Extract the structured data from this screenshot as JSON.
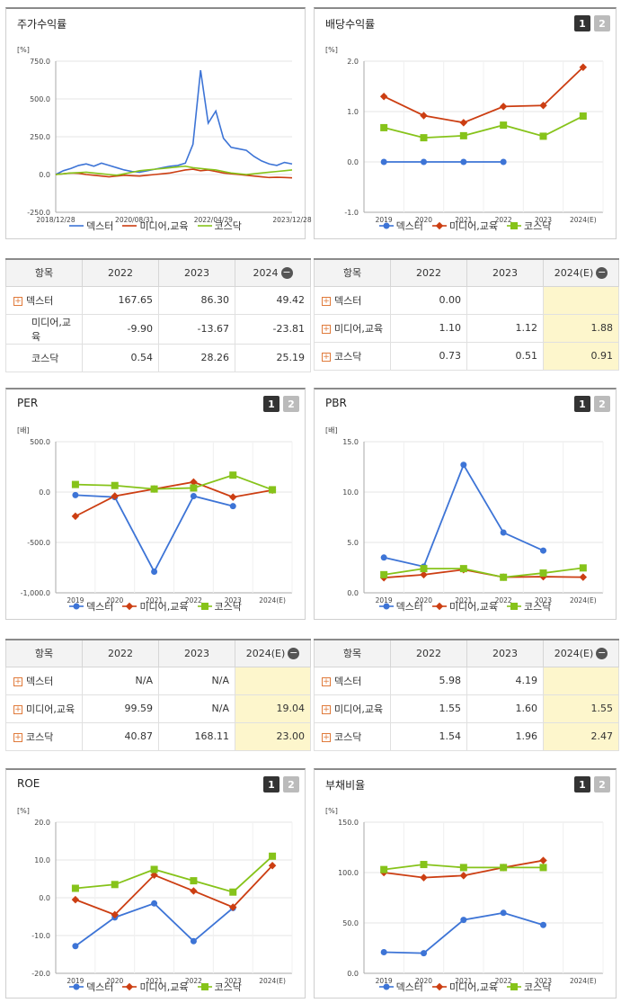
{
  "legend": [
    "덱스터",
    "미디어,교육",
    "코스닥"
  ],
  "colors": [
    "#3d74d6",
    "#cc3e12",
    "#86c31a"
  ],
  "buttons": [
    "1",
    "2"
  ],
  "minus": "−",
  "charts": [
    {
      "key": "stock",
      "title": "주가수익률",
      "unit": "[%]",
      "type": "line",
      "yticks": [
        "750.0",
        "500.0",
        "250.0",
        "0.0",
        "-250.0"
      ],
      "ylim": [
        -250,
        750
      ],
      "xticks": [
        "2018/12/28",
        "2020/08/31",
        "2022/04/29",
        "2023/12/28"
      ],
      "series": [
        {
          "name": "덱스터",
          "values": [
            0,
            25,
            40,
            60,
            70,
            55,
            75,
            60,
            45,
            30,
            20,
            15,
            25,
            35,
            45,
            55,
            60,
            75,
            200,
            690,
            340,
            420,
            240,
            180,
            170,
            160,
            120,
            90,
            70,
            60,
            80,
            70
          ]
        },
        {
          "name": "미디어,교육",
          "values": [
            0,
            5,
            10,
            8,
            0,
            -5,
            -10,
            -15,
            -10,
            -5,
            -8,
            -10,
            -5,
            0,
            5,
            10,
            20,
            30,
            35,
            25,
            30,
            20,
            10,
            5,
            0,
            -5,
            -10,
            -15,
            -20,
            -18,
            -20,
            -22
          ]
        },
        {
          "name": "코스닥",
          "values": [
            0,
            5,
            10,
            12,
            15,
            10,
            5,
            0,
            -5,
            5,
            15,
            25,
            30,
            35,
            40,
            45,
            50,
            55,
            45,
            40,
            35,
            30,
            20,
            10,
            5,
            0,
            5,
            10,
            15,
            20,
            25,
            30
          ]
        }
      ]
    },
    {
      "key": "div",
      "title": "배당수익률",
      "unit": "[%]",
      "type": "line",
      "yticks": [
        "2.0",
        "1.0",
        "0.0",
        "-1.0"
      ],
      "ylim": [
        -1,
        2
      ],
      "xticks": [
        "2019",
        "2020",
        "2021",
        "2022",
        "2023",
        "2024(E)"
      ],
      "series": [
        {
          "name": "덱스터",
          "values": [
            0,
            0,
            0,
            0,
            null,
            null
          ]
        },
        {
          "name": "미디어,교육",
          "values": [
            1.3,
            0.92,
            0.78,
            1.1,
            1.12,
            1.88
          ]
        },
        {
          "name": "코스닥",
          "values": [
            0.68,
            0.48,
            0.52,
            0.73,
            0.51,
            0.91
          ]
        }
      ]
    },
    {
      "key": "per",
      "title": "PER",
      "unit": "[배]",
      "type": "line",
      "yticks": [
        "500.0",
        "0.0",
        "-500.0",
        "-1,000.0"
      ],
      "ylim": [
        -1000,
        500
      ],
      "xticks": [
        "2019",
        "2020",
        "2021",
        "2022",
        "2023",
        "2024(E)"
      ],
      "series": [
        {
          "name": "덱스터",
          "values": [
            -30,
            -50,
            -790,
            -40,
            -140,
            null
          ]
        },
        {
          "name": "미디어,교육",
          "values": [
            -240,
            -40,
            30,
            99.59,
            -50,
            19.04
          ]
        },
        {
          "name": "코스닥",
          "values": [
            75,
            65,
            30,
            40.87,
            168.11,
            23
          ]
        }
      ]
    },
    {
      "key": "pbr",
      "title": "PBR",
      "unit": "[배]",
      "type": "line",
      "yticks": [
        "15.0",
        "10.0",
        "5.0",
        "0.0"
      ],
      "ylim": [
        0,
        15
      ],
      "xticks": [
        "2019",
        "2020",
        "2021",
        "2022",
        "2023",
        "2024(E)"
      ],
      "series": [
        {
          "name": "덱스터",
          "values": [
            3.5,
            2.6,
            12.7,
            5.98,
            4.19,
            null
          ]
        },
        {
          "name": "미디어,교육",
          "values": [
            1.5,
            1.8,
            2.3,
            1.55,
            1.6,
            1.55
          ]
        },
        {
          "name": "코스닥",
          "values": [
            1.8,
            2.4,
            2.4,
            1.54,
            1.96,
            2.47
          ]
        }
      ]
    },
    {
      "key": "roe",
      "title": "ROE",
      "unit": "[%]",
      "type": "line",
      "yticks": [
        "20.0",
        "10.0",
        "0.0",
        "-10.0",
        "-20.0"
      ],
      "ylim": [
        -20,
        20
      ],
      "xticks": [
        "2019",
        "2020",
        "2021",
        "2022",
        "2023",
        "2024(E)"
      ],
      "series": [
        {
          "name": "덱스터",
          "values": [
            -12.8,
            -5.2,
            -1.5,
            -11.5,
            -2.7,
            null
          ]
        },
        {
          "name": "미디어,교육",
          "values": [
            -0.5,
            -4.5,
            6,
            1.8,
            -2.5,
            8.5
          ]
        },
        {
          "name": "코스닥",
          "values": [
            2.5,
            3.5,
            7.5,
            4.5,
            1.5,
            11
          ]
        }
      ]
    },
    {
      "key": "debt",
      "title": "부채비율",
      "unit": "[%]",
      "type": "line",
      "yticks": [
        "150.0",
        "100.0",
        "50.0",
        "0.0"
      ],
      "ylim": [
        0,
        150
      ],
      "xticks": [
        "2019",
        "2020",
        "2021",
        "2022",
        "2023",
        "2024(E)"
      ],
      "series": [
        {
          "name": "덱스터",
          "values": [
            21,
            20,
            53,
            60,
            48,
            null
          ]
        },
        {
          "name": "미디어,교육",
          "values": [
            100,
            95,
            97,
            105,
            112,
            null
          ]
        },
        {
          "name": "코스닥",
          "values": [
            103,
            108,
            105,
            105,
            105,
            null
          ]
        }
      ]
    }
  ],
  "tables": [
    {
      "key": "stock",
      "header": [
        "항목",
        "2022",
        "2023",
        "2024"
      ],
      "rows": [
        [
          "덱스터",
          "167.65",
          "86.30",
          "49.42"
        ],
        [
          "미디어,교육",
          "-9.90",
          "-13.67",
          "-23.81"
        ],
        [
          "코스닥",
          "0.54",
          "28.26",
          "25.19"
        ]
      ]
    },
    {
      "key": "div",
      "header": [
        "항목",
        "2022",
        "2023",
        "2024(E)"
      ],
      "rows": [
        [
          "덱스터",
          "0.00",
          "",
          ""
        ],
        [
          "미디어,교육",
          "1.10",
          "1.12",
          "1.88"
        ],
        [
          "코스닥",
          "0.73",
          "0.51",
          "0.91"
        ]
      ]
    },
    {
      "key": "per",
      "header": [
        "항목",
        "2022",
        "2023",
        "2024(E)"
      ],
      "rows": [
        [
          "덱스터",
          "N/A",
          "N/A",
          ""
        ],
        [
          "미디어,교육",
          "99.59",
          "N/A",
          "19.04"
        ],
        [
          "코스닥",
          "40.87",
          "168.11",
          "23.00"
        ]
      ]
    },
    {
      "key": "pbr",
      "header": [
        "항목",
        "2022",
        "2023",
        "2024(E)"
      ],
      "rows": [
        [
          "덱스터",
          "5.98",
          "4.19",
          ""
        ],
        [
          "미디어,교육",
          "1.55",
          "1.60",
          "1.55"
        ],
        [
          "코스닥",
          "1.54",
          "1.96",
          "2.47"
        ]
      ]
    }
  ]
}
